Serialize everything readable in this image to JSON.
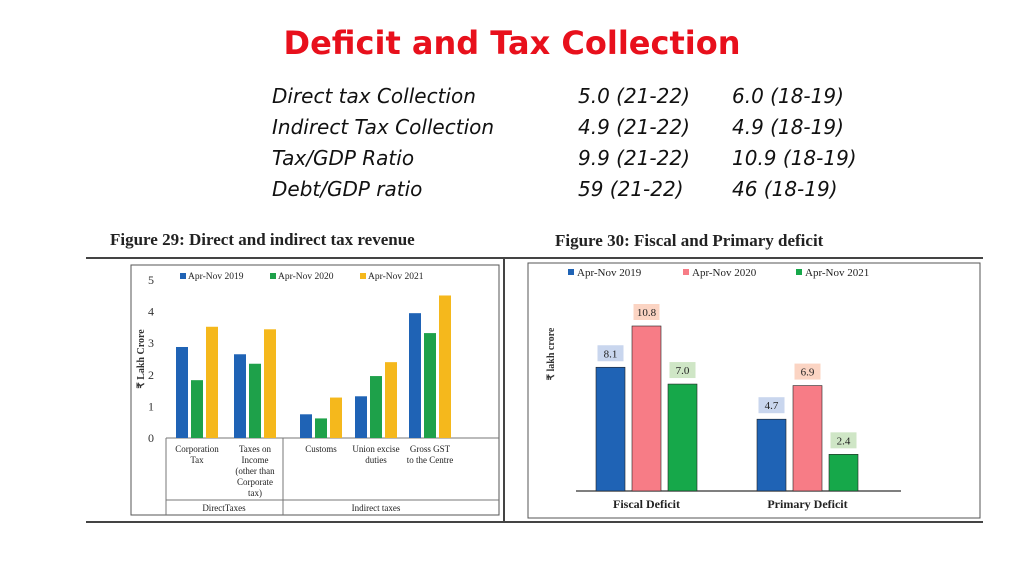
{
  "title": "Deficit and Tax Collection",
  "summary": [
    {
      "label": "Direct tax Collection",
      "v1": "5.0 (21-22)",
      "v2": "6.0 (18-19)"
    },
    {
      "label": "Indirect Tax Collection",
      "v1": "4.9 (21-22)",
      "v2": "4.9 (18-19)"
    },
    {
      "label": "Tax/GDP Ratio",
      "v1": "9.9 (21-22)",
      "v2": "10.9 (18-19)"
    },
    {
      "label": "Debt/GDP ratio",
      "v1": "59 (21-22)",
      "v2": "46 (18-19)"
    }
  ],
  "colors": {
    "blue": "#1f63b5",
    "green": "#1ea14a",
    "yellow": "#f5b81c",
    "pink": "#f77c86",
    "green2": "#16a84a"
  },
  "chart_data": [
    {
      "type": "bar",
      "title": "Figure 29: Direct and indirect tax revenue",
      "ylabel": "₹ Lakh Crore",
      "ylim": [
        0,
        5
      ],
      "yticks": [
        "0",
        "1",
        "2",
        "3",
        "4",
        "5"
      ],
      "legend_position": "top",
      "categories": [
        "Corporation Tax",
        "Taxes on Income (other than Corporate tax)",
        "Customs",
        "Union excise duties",
        "Gross GST to the Centre"
      ],
      "category_labels": [
        [
          "Corporation",
          "Tax"
        ],
        [
          "Taxes on",
          "Income",
          "(other than",
          "Corporate",
          "tax)"
        ],
        [
          "Customs"
        ],
        [
          "Union excise",
          "duties"
        ],
        [
          "Gross GST",
          "to the Centre"
        ]
      ],
      "groups": [
        {
          "label": "DirectTaxes",
          "categories": [
            0,
            1
          ]
        },
        {
          "label": "Indirect taxes",
          "categories": [
            2,
            3,
            4
          ]
        }
      ],
      "series": [
        {
          "name": "Apr-Nov 2019",
          "color": "#1f63b5",
          "values": [
            2.88,
            2.65,
            0.75,
            1.32,
            3.95
          ]
        },
        {
          "name": "Apr-Nov 2020",
          "color": "#1ea14a",
          "values": [
            1.83,
            2.35,
            0.62,
            1.96,
            3.32
          ]
        },
        {
          "name": "Apr-Nov 2021",
          "color": "#f5b81c",
          "values": [
            3.52,
            3.44,
            1.28,
            2.4,
            4.51
          ]
        }
      ]
    },
    {
      "type": "bar",
      "title": "Figure 30: Fiscal and Primary deficit",
      "ylabel": "₹ lakh crore",
      "legend_position": "top",
      "categories": [
        "Fiscal Deficit",
        "Primary Deficit"
      ],
      "series": [
        {
          "name": "Apr-Nov 2019",
          "color": "#1f63b5",
          "values": [
            8.1,
            4.7
          ],
          "labels": [
            "8.1",
            "4.7"
          ],
          "label_bg": "#c9d6ee"
        },
        {
          "name": "Apr-Nov 2020",
          "color": "#f77c86",
          "values": [
            10.8,
            6.9
          ],
          "labels": [
            "10.8",
            "6.9"
          ],
          "label_bg": "#fbd4c3"
        },
        {
          "name": "Apr-Nov 2021",
          "color": "#16a84a",
          "values": [
            7.0,
            2.4
          ],
          "labels": [
            "7.0",
            "2.4"
          ],
          "label_bg": "#cfe6c6"
        }
      ]
    }
  ]
}
